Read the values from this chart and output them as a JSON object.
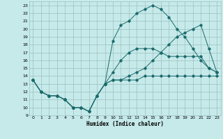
{
  "xlabel": "Humidex (Indice chaleur)",
  "bg_color": "#c6e9e9",
  "grid_color": "#9bbfbf",
  "line_color": "#1a6b6b",
  "xlim": [
    -0.5,
    23.5
  ],
  "ylim": [
    9,
    23.5
  ],
  "xticks": [
    0,
    1,
    2,
    3,
    4,
    5,
    6,
    7,
    8,
    9,
    10,
    11,
    12,
    13,
    14,
    15,
    16,
    17,
    18,
    19,
    20,
    21,
    22,
    23
  ],
  "yticks": [
    9,
    10,
    11,
    12,
    13,
    14,
    15,
    16,
    17,
    18,
    19,
    20,
    21,
    22,
    23
  ],
  "line1_y": [
    13.5,
    12.0,
    11.5,
    11.5,
    11.0,
    10.0,
    10.0,
    9.5,
    11.5,
    13.0,
    13.5,
    13.5,
    13.5,
    13.5,
    14.0,
    14.0,
    14.0,
    14.0,
    14.0,
    14.0,
    14.0,
    14.0,
    14.0,
    14.0
  ],
  "line2_y": [
    13.5,
    12.0,
    11.5,
    11.5,
    11.0,
    10.0,
    10.0,
    9.5,
    11.5,
    13.0,
    14.5,
    16.0,
    17.0,
    17.5,
    17.5,
    17.5,
    17.0,
    16.5,
    16.5,
    16.5,
    16.5,
    16.5,
    15.0,
    14.5
  ],
  "line3_y": [
    13.5,
    12.0,
    11.5,
    11.5,
    11.0,
    10.0,
    10.0,
    9.5,
    11.5,
    13.0,
    18.5,
    20.5,
    21.0,
    22.0,
    22.5,
    23.0,
    22.5,
    21.5,
    20.0,
    19.0,
    17.5,
    16.0,
    15.0,
    14.5
  ],
  "line4_y": [
    13.5,
    12.0,
    11.5,
    11.5,
    11.0,
    10.0,
    10.0,
    9.5,
    11.5,
    13.0,
    13.5,
    13.5,
    14.0,
    14.5,
    15.0,
    16.0,
    17.0,
    18.0,
    19.0,
    19.5,
    20.0,
    20.5,
    17.5,
    14.5
  ]
}
